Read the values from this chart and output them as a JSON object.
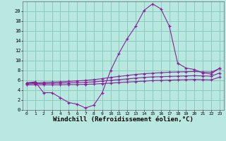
{
  "bg_color": "#b8e8e0",
  "line_color": "#882299",
  "marker": "+",
  "xlabel": "Windchill (Refroidissement éolien,°C)",
  "xlabel_fontsize": 6.5,
  "xlim": [
    -0.5,
    23.5
  ],
  "ylim": [
    0,
    22
  ],
  "yticks": [
    0,
    2,
    4,
    6,
    8,
    10,
    12,
    14,
    16,
    18,
    20
  ],
  "xticks": [
    0,
    1,
    2,
    3,
    4,
    5,
    6,
    7,
    8,
    9,
    10,
    11,
    12,
    13,
    14,
    15,
    16,
    17,
    18,
    19,
    20,
    21,
    22,
    23
  ],
  "grid_color": "#88ccbb",
  "series1_x": [
    0,
    1,
    2,
    3,
    4,
    5,
    6,
    7,
    8,
    9,
    10,
    11,
    12,
    13,
    14,
    15,
    16,
    17,
    18,
    19,
    20,
    21,
    22,
    23
  ],
  "series1_y": [
    5.5,
    5.7,
    3.5,
    3.5,
    2.5,
    1.5,
    1.2,
    0.4,
    1.0,
    3.5,
    8.0,
    11.5,
    14.5,
    17.0,
    20.2,
    21.5,
    20.5,
    17.0,
    9.5,
    8.5,
    8.2,
    7.5,
    7.3,
    8.5
  ],
  "series2_x": [
    0,
    1,
    2,
    3,
    4,
    5,
    6,
    7,
    8,
    9,
    10,
    11,
    12,
    13,
    14,
    15,
    16,
    17,
    18,
    19,
    20,
    21,
    22,
    23
  ],
  "series2_y": [
    5.5,
    5.5,
    5.6,
    5.65,
    5.7,
    5.8,
    5.9,
    6.0,
    6.15,
    6.35,
    6.6,
    6.8,
    7.0,
    7.2,
    7.35,
    7.45,
    7.55,
    7.65,
    7.7,
    7.75,
    7.8,
    7.7,
    7.65,
    8.4
  ],
  "series3_x": [
    0,
    1,
    2,
    3,
    4,
    5,
    6,
    7,
    8,
    9,
    10,
    11,
    12,
    13,
    14,
    15,
    16,
    17,
    18,
    19,
    20,
    21,
    22,
    23
  ],
  "series3_y": [
    5.3,
    5.35,
    5.35,
    5.4,
    5.45,
    5.5,
    5.55,
    5.6,
    5.7,
    5.85,
    6.0,
    6.15,
    6.3,
    6.45,
    6.6,
    6.7,
    6.75,
    6.8,
    6.85,
    6.9,
    6.95,
    6.9,
    6.85,
    7.5
  ],
  "series4_x": [
    0,
    1,
    2,
    3,
    4,
    5,
    6,
    7,
    8,
    9,
    10,
    11,
    12,
    13,
    14,
    15,
    16,
    17,
    18,
    19,
    20,
    21,
    22,
    23
  ],
  "series4_y": [
    5.1,
    5.1,
    5.1,
    5.1,
    5.1,
    5.15,
    5.15,
    5.2,
    5.25,
    5.35,
    5.45,
    5.55,
    5.65,
    5.75,
    5.85,
    5.95,
    6.0,
    6.05,
    6.1,
    6.15,
    6.2,
    6.15,
    6.1,
    6.65
  ]
}
